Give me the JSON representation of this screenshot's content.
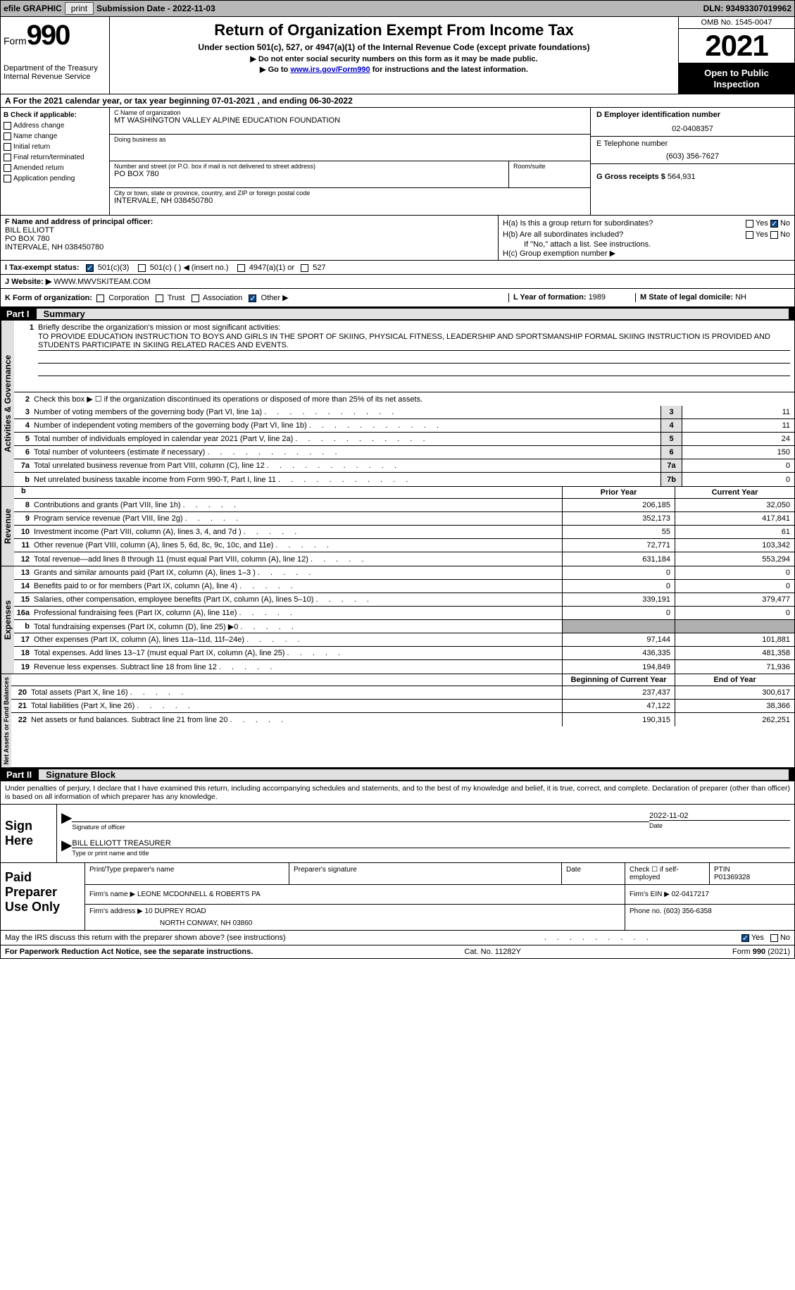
{
  "topbar": {
    "efile": "efile GRAPHIC",
    "print": "print",
    "subdate_label": "Submission Date - ",
    "subdate": "2022-11-03",
    "dln_label": "DLN: ",
    "dln": "93493307019962"
  },
  "header": {
    "form": "Form",
    "formnum": "990",
    "dept": "Department of the Treasury",
    "irs": "Internal Revenue Service",
    "title": "Return of Organization Exempt From Income Tax",
    "sub1": "Under section 501(c), 527, or 4947(a)(1) of the Internal Revenue Code (except private foundations)",
    "sub2": "▶ Do not enter social security numbers on this form as it may be made public.",
    "sub3_pre": "▶ Go to ",
    "sub3_link": "www.irs.gov/Form990",
    "sub3_post": " for instructions and the latest information.",
    "omb": "OMB No. 1545-0047",
    "year": "2021",
    "otp": "Open to Public Inspection"
  },
  "lineA": "For the 2021 calendar year, or tax year beginning 07-01-2021    , and ending 06-30-2022",
  "colB": {
    "title": "B Check if applicable:",
    "items": [
      "Address change",
      "Name change",
      "Initial return",
      "Final return/terminated",
      "Amended return",
      "Application pending"
    ]
  },
  "colC": {
    "name_label": "C Name of organization",
    "name": "MT WASHINGTON VALLEY ALPINE EDUCATION FOUNDATION",
    "dba_label": "Doing business as",
    "dba": "",
    "addr_label": "Number and street (or P.O. box if mail is not delivered to street address)",
    "room_label": "Room/suite",
    "addr": "PO BOX 780",
    "city_label": "City or town, state or province, country, and ZIP or foreign postal code",
    "city": "INTERVALE, NH  038450780"
  },
  "colD": {
    "ein_label": "D Employer identification number",
    "ein": "02-0408357",
    "tel_label": "E Telephone number",
    "tel": "(603) 356-7627",
    "gross_label": "G Gross receipts $ ",
    "gross": "564,931"
  },
  "colF": {
    "label": "F Name and address of principal officer:",
    "name": "BILL ELLIOTT",
    "addr1": "PO BOX 780",
    "addr2": "INTERVALE, NH  038450780"
  },
  "colH": {
    "ha": "H(a)  Is this a group return for subordinates?",
    "hb": "H(b)  Are all subordinates included?",
    "hb_note": "If \"No,\" attach a list. See instructions.",
    "hc": "H(c)  Group exemption number ▶",
    "yes": "Yes",
    "no": "No"
  },
  "rowI": {
    "label": "I   Tax-exempt status:",
    "opts": [
      "501(c)(3)",
      "501(c) (   ) ◀ (insert no.)",
      "4947(a)(1) or",
      "527"
    ]
  },
  "rowJ": {
    "label": "J   Website: ▶  ",
    "val": "WWW.MWVSKITEAM.COM"
  },
  "rowK": {
    "label": "K Form of organization:",
    "opts": [
      "Corporation",
      "Trust",
      "Association",
      "Other ▶"
    ],
    "l_label": "L Year of formation: ",
    "l_val": "1989",
    "m_label": "M State of legal domicile: ",
    "m_val": "NH"
  },
  "part1": {
    "num": "Part I",
    "title": "Summary",
    "side1": "Activities & Governance",
    "side2": "Revenue",
    "side3": "Expenses",
    "side4": "Net Assets or Fund Balances",
    "l1_label": "Briefly describe the organization's mission or most significant activities:",
    "l1_text": "TO PROVIDE EDUCATION INSTRUCTION TO BOYS AND GIRLS IN THE SPORT OF SKIING, PHYSICAL FITNESS, LEADERSHIP AND SPORTSMANSHIP FORMAL SKIING INSTRUCTION IS PROVIDED AND STUDENTS PARTICIPATE IN SKIING RELATED RACES AND EVENTS.",
    "l2": "Check this box ▶ ☐  if the organization discontinued its operations or disposed of more than 25% of its net assets.",
    "rows": [
      {
        "n": "3",
        "t": "Number of voting members of the governing body (Part VI, line 1a)",
        "box": "3",
        "v": "11"
      },
      {
        "n": "4",
        "t": "Number of independent voting members of the governing body (Part VI, line 1b)",
        "box": "4",
        "v": "11"
      },
      {
        "n": "5",
        "t": "Total number of individuals employed in calendar year 2021 (Part V, line 2a)",
        "box": "5",
        "v": "24"
      },
      {
        "n": "6",
        "t": "Total number of volunteers (estimate if necessary)",
        "box": "6",
        "v": "150"
      },
      {
        "n": "7a",
        "t": "Total unrelated business revenue from Part VIII, column (C), line 12",
        "box": "7a",
        "v": "0"
      },
      {
        "n": "b",
        "t": "Net unrelated business taxable income from Form 990-T, Part I, line 11",
        "box": "7b",
        "v": "0"
      }
    ],
    "py_label": "Prior Year",
    "cy_label": "Current Year",
    "rev_rows": [
      {
        "n": "8",
        "t": "Contributions and grants (Part VIII, line 1h)",
        "py": "206,185",
        "cy": "32,050"
      },
      {
        "n": "9",
        "t": "Program service revenue (Part VIII, line 2g)",
        "py": "352,173",
        "cy": "417,841"
      },
      {
        "n": "10",
        "t": "Investment income (Part VIII, column (A), lines 3, 4, and 7d )",
        "py": "55",
        "cy": "61"
      },
      {
        "n": "11",
        "t": "Other revenue (Part VIII, column (A), lines 5, 6d, 8c, 9c, 10c, and 11e)",
        "py": "72,771",
        "cy": "103,342"
      },
      {
        "n": "12",
        "t": "Total revenue—add lines 8 through 11 (must equal Part VIII, column (A), line 12)",
        "py": "631,184",
        "cy": "553,294"
      }
    ],
    "exp_rows": [
      {
        "n": "13",
        "t": "Grants and similar amounts paid (Part IX, column (A), lines 1–3 )",
        "py": "0",
        "cy": "0"
      },
      {
        "n": "14",
        "t": "Benefits paid to or for members (Part IX, column (A), line 4)",
        "py": "0",
        "cy": "0"
      },
      {
        "n": "15",
        "t": "Salaries, other compensation, employee benefits (Part IX, column (A), lines 5–10)",
        "py": "339,191",
        "cy": "379,477"
      },
      {
        "n": "16a",
        "t": "Professional fundraising fees (Part IX, column (A), line 11e)",
        "py": "0",
        "cy": "0"
      },
      {
        "n": "b",
        "t": "Total fundraising expenses (Part IX, column (D), line 25) ▶0",
        "py": "",
        "cy": "",
        "grey": true
      },
      {
        "n": "17",
        "t": "Other expenses (Part IX, column (A), lines 11a–11d, 11f–24e)",
        "py": "97,144",
        "cy": "101,881"
      },
      {
        "n": "18",
        "t": "Total expenses. Add lines 13–17 (must equal Part IX, column (A), line 25)",
        "py": "436,335",
        "cy": "481,358"
      },
      {
        "n": "19",
        "t": "Revenue less expenses. Subtract line 18 from line 12",
        "py": "194,849",
        "cy": "71,936"
      }
    ],
    "boy_label": "Beginning of Current Year",
    "eoy_label": "End of Year",
    "na_rows": [
      {
        "n": "20",
        "t": "Total assets (Part X, line 16)",
        "py": "237,437",
        "cy": "300,617"
      },
      {
        "n": "21",
        "t": "Total liabilities (Part X, line 26)",
        "py": "47,122",
        "cy": "38,366"
      },
      {
        "n": "22",
        "t": "Net assets or fund balances. Subtract line 21 from line 20",
        "py": "190,315",
        "cy": "262,251"
      }
    ]
  },
  "part2": {
    "num": "Part II",
    "title": "Signature Block",
    "penalties": "Under penalties of perjury, I declare that I have examined this return, including accompanying schedules and statements, and to the best of my knowledge and belief, it is true, correct, and complete. Declaration of preparer (other than officer) is based on all information of which preparer has any knowledge.",
    "sign_label": "Sign Here",
    "sig_of_officer": "Signature of officer",
    "date_label": "Date",
    "sig_date": "2022-11-02",
    "name_title_label": "Type or print name and title",
    "name_title": "BILL ELLIOTT  TREASURER",
    "ppu_label": "Paid Preparer Use Only",
    "prep_name_label": "Print/Type preparer's name",
    "prep_sig_label": "Preparer's signature",
    "check_self": "Check ☐ if self-employed",
    "ptin_label": "PTIN",
    "ptin": "P01369328",
    "firm_name_label": "Firm's name     ▶ ",
    "firm_name": "LEONE MCDONNELL & ROBERTS PA",
    "firm_ein_label": "Firm's EIN ▶ ",
    "firm_ein": "02-0417217",
    "firm_addr_label": "Firm's address ▶ ",
    "firm_addr1": "10 DUPREY ROAD",
    "firm_addr2": "NORTH CONWAY, NH  03860",
    "phone_label": "Phone no. ",
    "phone": "(603) 356-6358",
    "may_irs": "May the IRS discuss this return with the preparer shown above? (see instructions)"
  },
  "footer": {
    "pra": "For Paperwork Reduction Act Notice, see the separate instructions.",
    "cat": "Cat. No. 11282Y",
    "form": "Form 990 (2021)"
  }
}
